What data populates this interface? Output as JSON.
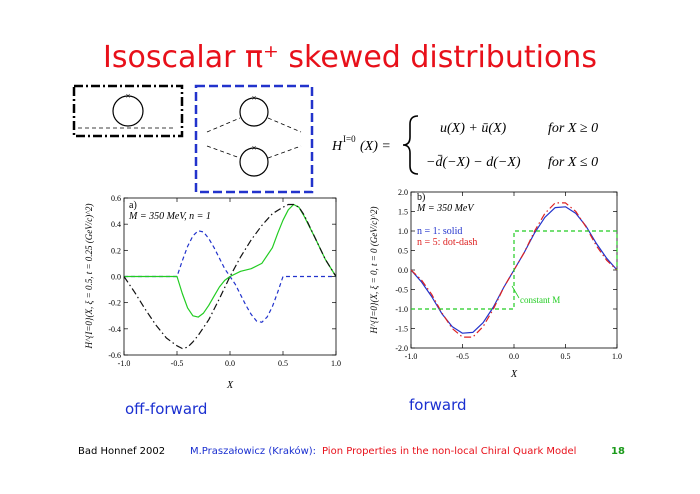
{
  "slide": {
    "title": "Isoscalar π⁺ skewed distributions",
    "caption_left": "off-forward",
    "caption_right": "forward",
    "formula": {
      "lhs": "H",
      "lhs_sup": "I=0",
      "lhs_arg": "(X) =",
      "row1": "u(X) + ū(X)",
      "row1_cond": "for   X ≥ 0",
      "row2": "−d̄(−X) − d(−X)",
      "row2_cond": "for   X ≤ 0"
    },
    "footer": {
      "left": "Bad Honnef 2002",
      "author": "M.Praszałowicz (Kraków):",
      "talk": "Pion Properties in the non-local Chiral Quark Model",
      "page": "18"
    },
    "colors": {
      "title": "#e8101a",
      "caption": "#1a2fd0",
      "footer_author": "#1a2fd0",
      "footer_talk": "#e8101a",
      "footer_page": "#1a9a1a"
    }
  },
  "chart_data": [
    {
      "type": "line",
      "panel": "a)",
      "annotation": "M = 350 MeV, n = 1",
      "xlabel": "X",
      "ylabel": "H^{I=0}(X, ξ = 0.5, t = 0.25 (GeV/c)^2)",
      "xlim": [
        -1.0,
        1.0
      ],
      "ylim": [
        -0.6,
        0.6
      ],
      "xticks": [
        "-1.0",
        "-0.5",
        "0.0",
        "0.5",
        "1.0"
      ],
      "yticks": [
        "-0.6",
        "-0.4",
        "-0.2",
        "0.0",
        "0.2",
        "0.4",
        "0.6"
      ],
      "series": [
        {
          "style": "dash",
          "color": "#2233cc",
          "x": [
            -1.0,
            -0.5,
            -0.45,
            -0.4,
            -0.35,
            -0.3,
            -0.25,
            -0.2,
            -0.15,
            -0.1,
            -0.05,
            0.0,
            0.05,
            0.1,
            0.15,
            0.2,
            0.25,
            0.3,
            0.35,
            0.4,
            0.45,
            0.5,
            1.0
          ],
          "y": [
            0.0,
            0.0,
            0.12,
            0.23,
            0.31,
            0.35,
            0.34,
            0.29,
            0.22,
            0.14,
            0.06,
            0.0,
            -0.06,
            -0.14,
            -0.22,
            -0.29,
            -0.34,
            -0.35,
            -0.31,
            -0.23,
            -0.12,
            0.0,
            0.0
          ]
        },
        {
          "style": "solid",
          "color": "#22cc22",
          "x": [
            -1.0,
            -0.5,
            -0.45,
            -0.4,
            -0.35,
            -0.3,
            -0.25,
            -0.2,
            -0.15,
            -0.1,
            -0.05,
            0.0,
            0.1,
            0.2,
            0.3,
            0.4,
            0.45,
            0.5,
            0.55,
            0.6,
            0.65,
            0.7,
            0.8,
            0.9,
            1.0
          ],
          "y": [
            0.0,
            0.0,
            -0.13,
            -0.24,
            -0.3,
            -0.31,
            -0.28,
            -0.22,
            -0.15,
            -0.08,
            -0.03,
            0.0,
            0.04,
            0.06,
            0.1,
            0.22,
            0.33,
            0.43,
            0.51,
            0.55,
            0.53,
            0.46,
            0.3,
            0.13,
            0.0
          ]
        },
        {
          "style": "dashdot",
          "color": "#111111",
          "x": [
            -1.0,
            -0.9,
            -0.8,
            -0.7,
            -0.6,
            -0.5,
            -0.45,
            -0.4,
            -0.35,
            -0.3,
            -0.2,
            -0.1,
            0.0,
            0.1,
            0.2,
            0.3,
            0.4,
            0.5,
            0.55,
            0.6,
            0.65,
            0.7,
            0.8,
            0.9,
            1.0
          ],
          "y": [
            0.0,
            -0.12,
            -0.25,
            -0.37,
            -0.47,
            -0.53,
            -0.55,
            -0.54,
            -0.5,
            -0.45,
            -0.33,
            -0.17,
            0.0,
            0.15,
            0.28,
            0.39,
            0.48,
            0.53,
            0.55,
            0.55,
            0.53,
            0.47,
            0.3,
            0.13,
            0.0
          ]
        }
      ]
    },
    {
      "type": "line",
      "panel": "b)",
      "annotation": "M = 350 MeV",
      "xlabel": "X",
      "ylabel": "H^{I=0}(X, ξ = 0, t = 0 (GeV/c)^2)",
      "xlim": [
        -1.0,
        1.0
      ],
      "ylim": [
        -2.0,
        2.0
      ],
      "xticks": [
        "-1.0",
        "-0.5",
        "0.0",
        "0.5",
        "1.0"
      ],
      "yticks": [
        "-2.0",
        "-1.5",
        "-1.0",
        "-0.5",
        "0.0",
        "0.5",
        "1.0",
        "1.5",
        "2.0"
      ],
      "legend": [
        {
          "label": "n = 1: solid",
          "color": "#2233cc"
        },
        {
          "label": "n = 5: dot-dash",
          "color": "#dd2222"
        }
      ],
      "label_constant": "constant M",
      "series": [
        {
          "style": "solid",
          "color": "#2233cc",
          "x": [
            -1.0,
            -0.9,
            -0.8,
            -0.7,
            -0.6,
            -0.5,
            -0.4,
            -0.3,
            -0.2,
            -0.1,
            0.0,
            0.1,
            0.2,
            0.3,
            0.4,
            0.5,
            0.6,
            0.7,
            0.8,
            0.9,
            1.0
          ],
          "y": [
            0.0,
            -0.3,
            -0.68,
            -1.12,
            -1.45,
            -1.62,
            -1.6,
            -1.35,
            -0.95,
            -0.45,
            0.0,
            0.45,
            0.95,
            1.35,
            1.6,
            1.62,
            1.45,
            1.12,
            0.68,
            0.3,
            0.0
          ]
        },
        {
          "style": "dashdot",
          "color": "#dd2222",
          "x": [
            -1.0,
            -0.9,
            -0.8,
            -0.7,
            -0.6,
            -0.5,
            -0.4,
            -0.3,
            -0.2,
            -0.1,
            0.0,
            0.1,
            0.2,
            0.3,
            0.4,
            0.5,
            0.6,
            0.7,
            0.8,
            0.9,
            1.0
          ],
          "y": [
            0.0,
            -0.25,
            -0.62,
            -1.1,
            -1.5,
            -1.72,
            -1.72,
            -1.45,
            -1.0,
            -0.45,
            0.0,
            0.45,
            1.0,
            1.45,
            1.72,
            1.72,
            1.5,
            1.1,
            0.62,
            0.25,
            0.0
          ]
        },
        {
          "style": "dash",
          "color": "#22cc22",
          "x": [
            -1.0,
            0.0,
            0.0,
            1.0,
            1.0
          ],
          "y": [
            -1.0,
            -1.0,
            1.0,
            1.0,
            0.0
          ]
        }
      ]
    }
  ]
}
